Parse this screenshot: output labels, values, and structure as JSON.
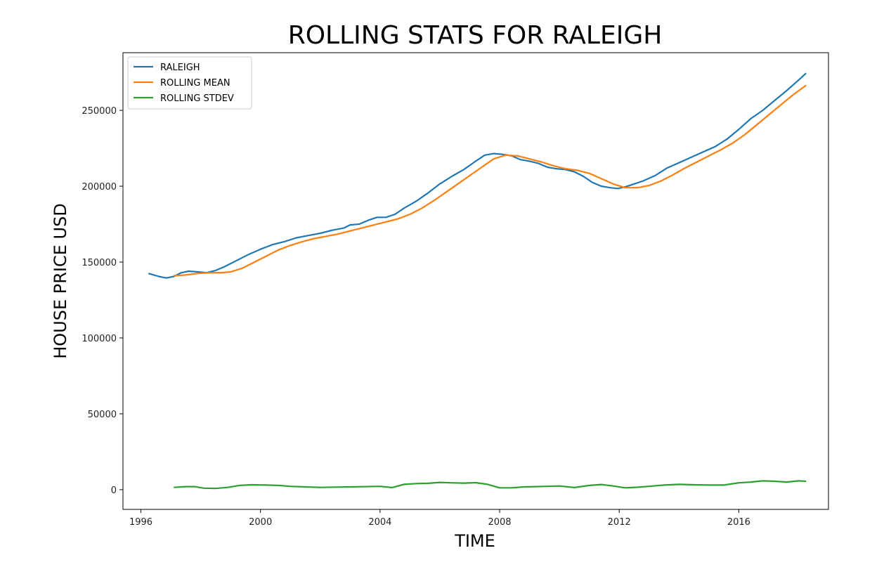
{
  "chart_data": {
    "type": "line",
    "title": "ROLLING STATS FOR RALEIGH",
    "xlabel": "TIME",
    "ylabel": "HOUSE PRICE USD",
    "xlim": [
      1995.4,
      2019.0
    ],
    "ylim": [
      -13000,
      288000
    ],
    "x_ticks": [
      1996,
      2000,
      2004,
      2008,
      2012,
      2016
    ],
    "x_tick_labels": [
      "1996",
      "2000",
      "2004",
      "2008",
      "2012",
      "2016"
    ],
    "y_ticks": [
      0,
      50000,
      100000,
      150000,
      200000,
      250000
    ],
    "y_tick_labels": [
      "0",
      "50000",
      "100000",
      "150000",
      "200000",
      "250000"
    ],
    "grid": false,
    "legend": "top-left",
    "series": [
      {
        "name": "RALEIGH",
        "color": "#1f77b4",
        "x": [
          1996.25,
          1996.6,
          1996.85,
          1997.1,
          1997.35,
          1997.6,
          1997.9,
          1998.2,
          1998.5,
          1998.8,
          1999.2,
          1999.6,
          2000.0,
          2000.4,
          2000.8,
          2001.2,
          2001.6,
          2002.0,
          2002.4,
          2002.8,
          2003.0,
          2003.3,
          2003.6,
          2003.9,
          2004.2,
          2004.5,
          2004.8,
          2005.2,
          2005.6,
          2006.0,
          2006.4,
          2006.8,
          2007.2,
          2007.5,
          2007.8,
          2008.1,
          2008.4,
          2008.7,
          2009.0,
          2009.3,
          2009.6,
          2009.9,
          2010.2,
          2010.5,
          2010.8,
          2011.1,
          2011.4,
          2011.7,
          2011.95,
          2012.2,
          2012.5,
          2012.8,
          2013.2,
          2013.6,
          2014.0,
          2014.4,
          2014.8,
          2015.2,
          2015.6,
          2016.0,
          2016.4,
          2016.8,
          2017.2,
          2017.6,
          2018.0,
          2018.25
        ],
        "values": [
          142500,
          140500,
          139500,
          140500,
          143000,
          144000,
          143500,
          143000,
          144500,
          147000,
          151000,
          155000,
          158500,
          161500,
          163500,
          166000,
          167500,
          169000,
          171000,
          172500,
          174500,
          175000,
          177500,
          179500,
          179500,
          181500,
          185500,
          190000,
          195500,
          201500,
          206500,
          211000,
          216500,
          220500,
          221500,
          221000,
          220000,
          217500,
          216500,
          215000,
          212500,
          211500,
          211000,
          209500,
          206500,
          202500,
          200000,
          199000,
          198500,
          199500,
          201500,
          203500,
          207000,
          212000,
          215500,
          219000,
          222500,
          226000,
          231000,
          237500,
          244500,
          250000,
          256500,
          263000,
          270000,
          274500
        ]
      },
      {
        "name": "ROLLING MEAN",
        "color": "#ff7f0e",
        "x": [
          1997.1,
          1997.5,
          1997.9,
          1998.3,
          1998.7,
          1999.0,
          1999.4,
          1999.8,
          2000.2,
          2000.6,
          2001.0,
          2001.4,
          2001.8,
          2002.2,
          2002.6,
          2003.0,
          2003.4,
          2003.8,
          2004.2,
          2004.6,
          2005.0,
          2005.4,
          2005.8,
          2006.2,
          2006.6,
          2007.0,
          2007.4,
          2007.8,
          2008.2,
          2008.6,
          2009.0,
          2009.4,
          2009.8,
          2010.2,
          2010.6,
          2011.0,
          2011.4,
          2011.8,
          2012.2,
          2012.6,
          2013.0,
          2013.4,
          2013.8,
          2014.2,
          2014.6,
          2015.0,
          2015.4,
          2015.8,
          2016.2,
          2016.6,
          2017.0,
          2017.4,
          2017.8,
          2018.25
        ],
        "values": [
          141000,
          141500,
          142500,
          143000,
          143000,
          143500,
          146000,
          150000,
          154000,
          158000,
          161000,
          163500,
          165500,
          167000,
          168500,
          170500,
          172500,
          174500,
          176500,
          178500,
          181500,
          185500,
          190500,
          196000,
          201500,
          207000,
          212500,
          218000,
          220500,
          220000,
          218000,
          216000,
          213500,
          211500,
          210500,
          208500,
          205000,
          201500,
          199000,
          199000,
          200500,
          203500,
          207500,
          212000,
          216000,
          220000,
          224000,
          228500,
          234000,
          240500,
          247000,
          253500,
          260000,
          266500
        ]
      },
      {
        "name": "ROLLING STDEV",
        "color": "#2ca02c",
        "x": [
          1997.1,
          1997.5,
          1997.8,
          1998.1,
          1998.5,
          1998.9,
          1999.3,
          1999.7,
          2000.2,
          2000.6,
          2001.0,
          2001.5,
          2002.0,
          2002.5,
          2003.0,
          2003.5,
          2004.0,
          2004.4,
          2004.8,
          2005.2,
          2005.6,
          2006.0,
          2006.4,
          2006.8,
          2007.2,
          2007.6,
          2008.0,
          2008.4,
          2008.8,
          2009.2,
          2009.6,
          2010.0,
          2010.5,
          2011.0,
          2011.4,
          2011.8,
          2012.2,
          2012.6,
          2013.0,
          2013.5,
          2014.0,
          2014.5,
          2015.0,
          2015.5,
          2016.0,
          2016.4,
          2016.8,
          2017.2,
          2017.6,
          2018.0,
          2018.25
        ],
        "values": [
          1500,
          2000,
          2000,
          1000,
          800,
          1500,
          2800,
          3200,
          3000,
          2800,
          2200,
          1800,
          1500,
          1700,
          1800,
          2000,
          2200,
          1400,
          3500,
          4000,
          4200,
          4800,
          4500,
          4300,
          4600,
          3500,
          1200,
          1200,
          1800,
          2000,
          2200,
          2400,
          1400,
          2800,
          3400,
          2400,
          1200,
          1600,
          2200,
          3000,
          3500,
          3200,
          3000,
          3000,
          4500,
          5000,
          5800,
          5500,
          5000,
          5800,
          5500
        ]
      }
    ]
  }
}
